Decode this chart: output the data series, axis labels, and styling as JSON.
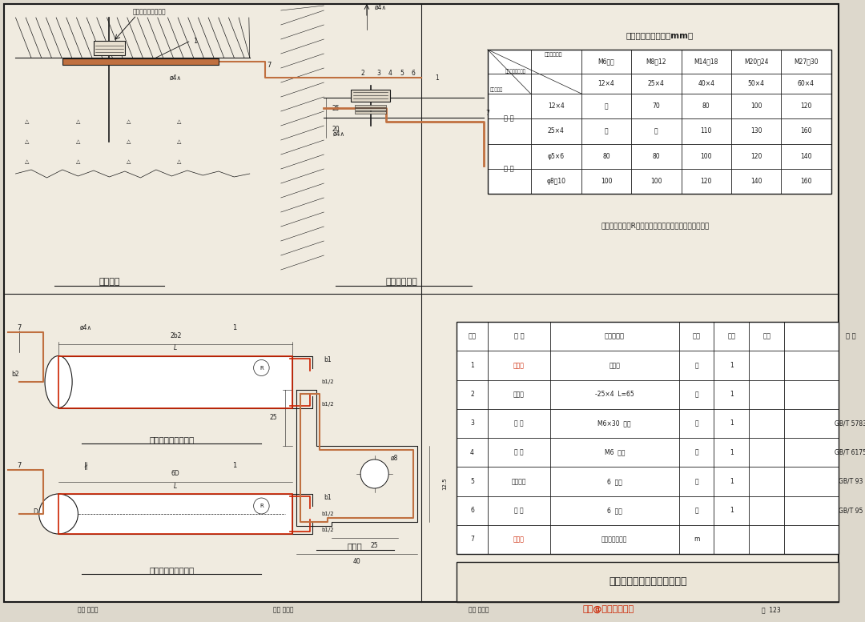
{
  "bg_color": "#ddd8cc",
  "paper_color": "#f0ebe0",
  "line_color": "#1a1a1a",
  "red_color": "#cc2200",
  "copper_color": "#c07040",
  "title1": "设备接地",
  "title2": "金属壳体接地",
  "title3": "连接片（用于扁钢）",
  "title4": "连接片（用于圆钢）",
  "title5": "接地耳",
  "title6": "设备外露导电部分的接地安装",
  "table1_title": "连接片制作长度表（mm）",
  "table1_col_headers": [
    "M6以下",
    "M8～12",
    "M14～18",
    "M20～24",
    "M27～30"
  ],
  "table1_sub_headers": [
    "12×4",
    "25×4",
    "40×4",
    "50×4",
    "60×4"
  ],
  "table1_row_cats": [
    "扁 钢",
    "",
    "圆 钢",
    ""
  ],
  "table1_row_specs": [
    "12×4",
    "25×4",
    "φ5×6",
    "φ8～10"
  ],
  "table1_values": [
    [
      "－",
      "70",
      "80",
      "100",
      "120"
    ],
    [
      "－",
      "－",
      "110",
      "130",
      "160"
    ],
    [
      "80",
      "80",
      "100",
      "120",
      "140"
    ],
    [
      "100",
      "100",
      "120",
      "140",
      "160"
    ]
  ],
  "table2_headers": [
    "序号",
    "名 称",
    "型号及规格",
    "单位",
    "数量",
    "页次",
    "备 注"
  ],
  "table2_data": [
    [
      "1",
      "连接片",
      "见上表",
      "个",
      "1",
      "",
      ""
    ],
    [
      "2",
      "接地耳",
      "-25×4  L=65",
      "个",
      "1",
      "",
      ""
    ],
    [
      "3",
      "螺 栓",
      "M6×30  镀锌",
      "个",
      "1",
      "",
      "GB/T 5783"
    ],
    [
      "4",
      "螺 母",
      "M6  镀锌",
      "个",
      "1",
      "",
      "GB/T 6175"
    ],
    [
      "5",
      "弹簧垫圈",
      "6  镀锌",
      "个",
      "1",
      "",
      "GB/T 93"
    ],
    [
      "6",
      "垫 圈",
      "6  镀锌",
      "个",
      "1",
      "",
      "GB/T 95"
    ],
    [
      "7",
      "接地线",
      "由工程设计确定",
      "m",
      "",
      "",
      ""
    ]
  ],
  "table2_red_names": [
    "连接片",
    "接地线"
  ],
  "note_text": "注：连接片上的R，根据地脚螺栓或接地螺栓大小确定。",
  "bottom_audit": "审核 李道本",
  "bottom_check": "校对 范景昌",
  "bottom_design": "设计 崔福涛",
  "bottom_page": "页  123",
  "watermark": "头条@了不起我的家"
}
